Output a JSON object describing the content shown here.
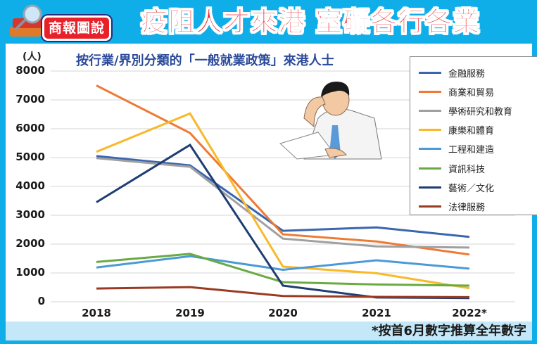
{
  "header": {
    "logo_badge": "商報圖說",
    "headline": "疫阻人才來港 窒礙各行各業"
  },
  "footer": {
    "note": "*按首6月數字推算全年數字"
  },
  "chart_data": {
    "type": "line",
    "title": "按行業/界別分類的「一般就業政策」來港人士",
    "xlabel": "",
    "ylabel": "(人)",
    "categories": [
      "2018",
      "2019",
      "2020",
      "2021",
      "2022*"
    ],
    "ylim": [
      0,
      8000
    ],
    "yticks": [
      0,
      1000,
      2000,
      3000,
      4000,
      5000,
      6000,
      7000,
      8000
    ],
    "grid": true,
    "legend_position": "upper right",
    "series": [
      {
        "name": "金融服務",
        "color": "#3a66b0",
        "values": [
          5050,
          4730,
          2460,
          2580,
          2250
        ]
      },
      {
        "name": "商業和貿易",
        "color": "#ee7a35",
        "values": [
          7500,
          5850,
          2340,
          2090,
          1640
        ]
      },
      {
        "name": "學術研究和教育",
        "color": "#a0a0a0",
        "values": [
          4980,
          4680,
          2190,
          1920,
          1880
        ]
      },
      {
        "name": "康樂和體育",
        "color": "#f8b92a",
        "values": [
          5200,
          6530,
          1220,
          990,
          470
        ]
      },
      {
        "name": "工程和建造",
        "color": "#4a9ad8",
        "values": [
          1190,
          1580,
          1110,
          1440,
          1150
        ]
      },
      {
        "name": "資訊科技",
        "color": "#6aaa42",
        "values": [
          1380,
          1660,
          680,
          600,
          560
        ]
      },
      {
        "name": "藝術／文化",
        "color": "#1f3d72",
        "values": [
          3450,
          5440,
          560,
          150,
          130
        ]
      },
      {
        "name": "法律服務",
        "color": "#9a3a22",
        "values": [
          460,
          510,
          200,
          170,
          160
        ]
      }
    ]
  }
}
